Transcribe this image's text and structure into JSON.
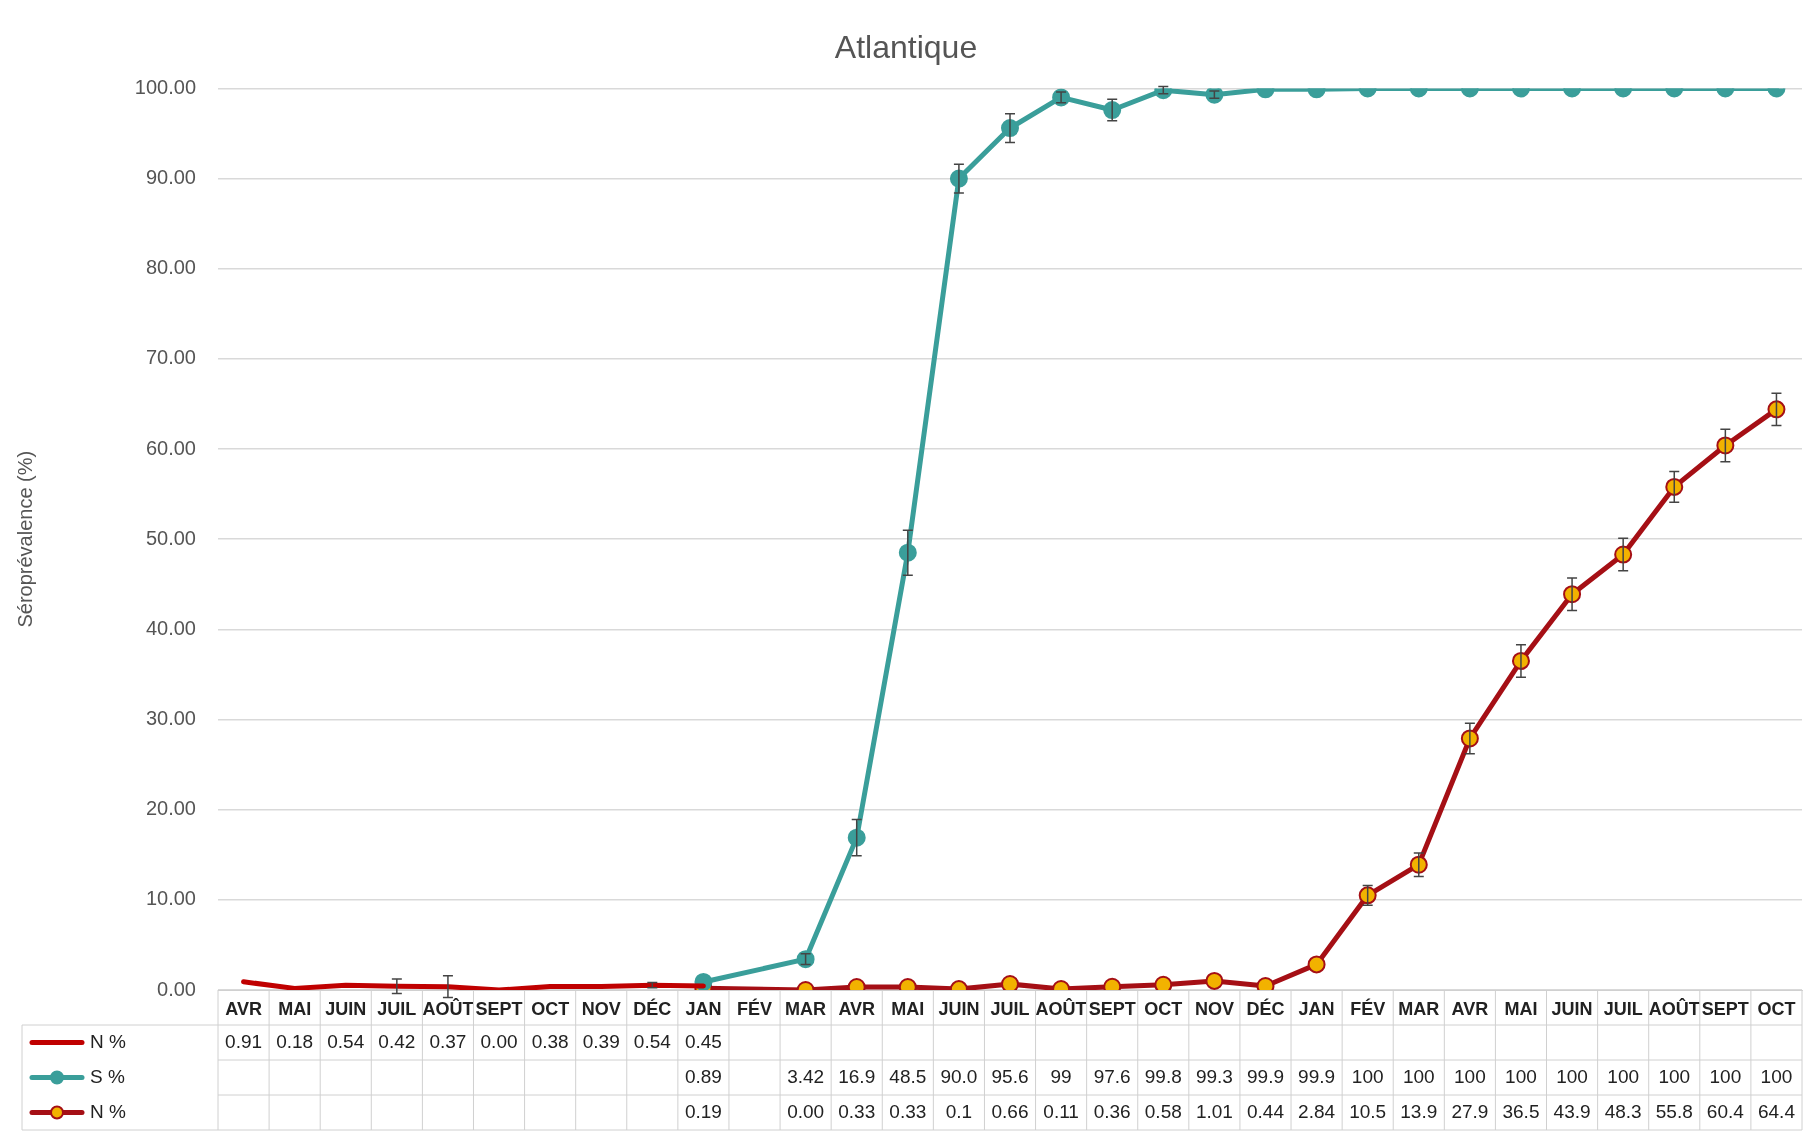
{
  "chart_data": {
    "type": "line",
    "title": "Atlantique",
    "ylabel": "Séroprévalence (%)",
    "categories": [
      "AVR",
      "MAI",
      "JUIN",
      "JUIL",
      "AOÛT",
      "SEPT",
      "OCT",
      "NOV",
      "DÉC",
      "JAN",
      "FÉV",
      "MAR",
      "AVR",
      "MAI",
      "JUIN",
      "JUIL",
      "AOÛT",
      "SEPT",
      "OCT",
      "NOV",
      "DÉC",
      "JAN",
      "FÉV",
      "MAR",
      "AVR",
      "MAI",
      "JUIN",
      "JUIL",
      "AOÛT",
      "SEPT",
      "OCT"
    ],
    "ylim": [
      0,
      100
    ],
    "yticks": [
      {
        "value": 0,
        "label": "0.00"
      },
      {
        "value": 10,
        "label": "10.00"
      },
      {
        "value": 20,
        "label": "20.00"
      },
      {
        "value": 30,
        "label": "30.00"
      },
      {
        "value": 40,
        "label": "40.00"
      },
      {
        "value": 50,
        "label": "50.00"
      },
      {
        "value": 60,
        "label": "60.00"
      },
      {
        "value": 70,
        "label": "70.00"
      },
      {
        "value": 80,
        "label": "80.00"
      },
      {
        "value": 90,
        "label": "90.00"
      },
      {
        "value": 100,
        "label": "100.00"
      }
    ],
    "grid": "y",
    "legend": "bottom left",
    "line_style": "solid",
    "series": [
      {
        "name": "N %",
        "color": "#c00000",
        "marker": "none",
        "values": [
          0.91,
          0.18,
          0.54,
          0.42,
          0.37,
          0.0,
          0.38,
          0.39,
          0.54,
          0.45,
          null,
          null,
          null,
          null,
          null,
          null,
          null,
          null,
          null,
          null,
          null,
          null,
          null,
          null,
          null,
          null,
          null,
          null,
          null,
          null,
          null
        ],
        "errors": [
          null,
          null,
          null,
          0.8,
          1.2,
          null,
          null,
          null,
          0.3,
          null,
          null,
          null,
          null,
          null,
          null,
          null,
          null,
          null,
          null,
          null,
          null,
          null,
          null,
          null,
          null,
          null,
          null,
          null,
          null,
          null,
          null
        ],
        "value_labels": [
          "0.91",
          "0.18",
          "0.54",
          "0.42",
          "0.37",
          "0.00",
          "0.38",
          "0.39",
          "0.54",
          "0.45",
          null,
          null,
          null,
          null,
          null,
          null,
          null,
          null,
          null,
          null,
          null,
          null,
          null,
          null,
          null,
          null,
          null,
          null,
          null,
          null,
          null
        ]
      },
      {
        "name": "S %",
        "color": "#3a9e9a",
        "marker": "circle",
        "values": [
          null,
          null,
          null,
          null,
          null,
          null,
          null,
          null,
          null,
          0.89,
          null,
          3.42,
          16.9,
          48.5,
          90.0,
          95.6,
          99,
          97.6,
          99.8,
          99.3,
          99.9,
          99.9,
          100,
          100,
          100,
          100,
          100,
          100,
          100,
          100,
          100
        ],
        "errors": [
          null,
          null,
          null,
          null,
          null,
          null,
          null,
          null,
          null,
          null,
          null,
          0.6,
          2,
          2.5,
          1.6,
          1.6,
          0.6,
          1.2,
          0.4,
          0.4,
          null,
          null,
          null,
          null,
          null,
          null,
          null,
          null,
          null,
          null,
          null
        ],
        "value_labels": [
          null,
          null,
          null,
          null,
          null,
          null,
          null,
          null,
          null,
          "0.89",
          null,
          "3.42",
          "16.9",
          "48.5",
          "90.0",
          "95.6",
          "99",
          "97.6",
          "99.8",
          "99.3",
          "99.9",
          "99.9",
          "100",
          "100",
          "100",
          "100",
          "100",
          "100",
          "100",
          "100",
          "100"
        ]
      },
      {
        "name": "N %",
        "color": "#a50f15",
        "marker": "circle",
        "values": [
          null,
          null,
          null,
          null,
          null,
          null,
          null,
          null,
          null,
          0.19,
          null,
          0.0,
          0.33,
          0.33,
          0.1,
          0.66,
          0.11,
          0.36,
          0.58,
          1.01,
          0.44,
          2.84,
          10.5,
          13.9,
          27.9,
          36.5,
          43.9,
          48.3,
          55.8,
          60.4,
          64.4
        ],
        "errors": [
          null,
          null,
          null,
          null,
          null,
          null,
          null,
          null,
          null,
          null,
          null,
          null,
          null,
          null,
          null,
          null,
          null,
          null,
          null,
          null,
          null,
          null,
          1.1,
          1.3,
          1.7,
          1.8,
          1.8,
          1.8,
          1.7,
          1.8,
          1.8
        ],
        "value_labels": [
          null,
          null,
          null,
          null,
          null,
          null,
          null,
          null,
          null,
          "0.19",
          null,
          "0.00",
          "0.33",
          "0.33",
          "0.1",
          "0.66",
          "0.11",
          "0.36",
          "0.58",
          "1.01",
          "0.44",
          "2.84",
          "10.5",
          "13.9",
          "27.9",
          "36.5",
          "43.9",
          "48.3",
          "55.8",
          "60.4",
          "64.4"
        ]
      }
    ]
  }
}
